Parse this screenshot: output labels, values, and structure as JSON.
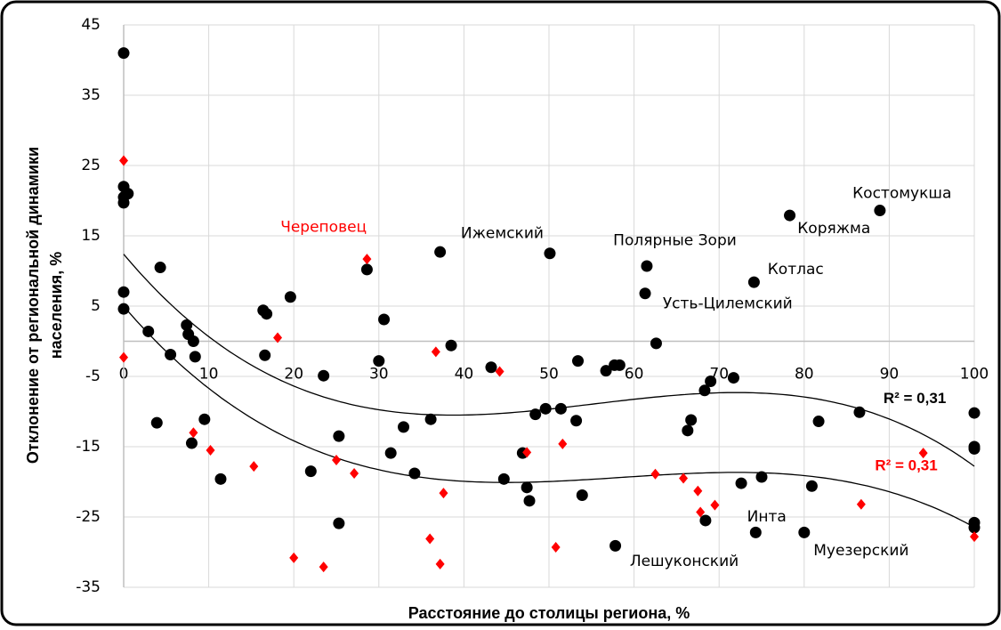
{
  "chart_data": {
    "type": "scatter",
    "xlabel": "Расстояние до столицы региона, %",
    "ylabel": [
      "Отклонение от региональной динамики",
      "населения, %"
    ],
    "xlim": [
      0,
      100
    ],
    "xticks": [
      0,
      10,
      20,
      30,
      40,
      50,
      60,
      70,
      80,
      90,
      100
    ],
    "ylim": [
      -35,
      45
    ],
    "yticks": [
      45,
      35,
      25,
      15,
      5,
      -5,
      -15,
      -25,
      -35
    ],
    "grid": true,
    "trendline_order": 3,
    "series": [
      {
        "color": "#000000",
        "marker": "circle",
        "x": [
          0,
          0,
          0.5,
          0,
          0,
          0,
          0,
          2.9,
          4.3,
          3.9,
          5.5,
          7.4,
          7.6,
          8.2,
          8.4,
          8,
          9.5,
          11.4,
          16.4,
          16.8,
          16.6,
          19.6,
          22,
          23.5,
          25.3,
          25.3,
          28.6,
          30,
          30.6,
          31.4,
          32.9,
          34.2,
          36.1,
          37.2,
          38.5,
          43.2,
          44.7,
          46.9,
          47.4,
          47.7,
          48.4,
          49.6,
          50.1,
          51.4,
          53.2,
          53.4,
          53.9,
          56.7,
          57.7,
          58.3,
          57.8,
          61.5,
          61.3,
          62.6,
          66.3,
          66.7,
          68.3,
          69,
          71.7,
          68.4,
          72.6,
          74.3,
          74.1,
          75,
          78.3,
          80.9,
          80,
          81.7,
          86.5,
          88.9,
          100,
          100,
          100,
          100,
          100
        ],
        "values": [
          41,
          22,
          21,
          20.5,
          19.7,
          7,
          4.6,
          1.4,
          10.5,
          -11.6,
          -1.9,
          2.3,
          1,
          0,
          -2.2,
          -14.5,
          -11.1,
          -19.6,
          4.4,
          3.9,
          -2,
          6.3,
          -18.5,
          -4.9,
          -13.5,
          -25.9,
          10.2,
          -2.8,
          3.1,
          -15.9,
          -12.2,
          -18.8,
          -11.1,
          12.7,
          -0.6,
          -3.7,
          -19.6,
          -15.9,
          -20.8,
          -22.7,
          -10.4,
          -9.6,
          12.5,
          -9.6,
          -11.3,
          -2.8,
          -21.9,
          -4.2,
          -3.4,
          -3.4,
          -29.1,
          10.7,
          6.8,
          -0.3,
          -12.7,
          -11.2,
          -7,
          -5.7,
          -5.2,
          -25.5,
          -20.2,
          -27.2,
          8.4,
          -19.3,
          17.9,
          -20.6,
          -27.2,
          -11.4,
          -10.1,
          18.6,
          -10.2,
          -15,
          -15.3,
          -25.8,
          -26.5
        ]
      },
      {
        "color": "#ff0000",
        "marker": "diamond",
        "x": [
          0,
          0,
          8.2,
          10.2,
          15.3,
          18.1,
          20,
          23.5,
          25,
          27.1,
          28.6,
          36,
          36.7,
          37.2,
          37.6,
          44.2,
          47.4,
          50.8,
          51.6,
          62.5,
          65.8,
          67.5,
          67.8,
          69.5,
          86.7,
          94,
          100
        ],
        "values": [
          25.7,
          -2.3,
          -13,
          -15.5,
          -17.8,
          0.5,
          -30.8,
          -32.1,
          -16.9,
          -18.8,
          11.7,
          -28.1,
          -1.5,
          -31.7,
          -21.6,
          -4.3,
          -15.8,
          -29.3,
          -14.6,
          -18.9,
          -19.5,
          -21.3,
          -24.3,
          -23.3,
          -23.2,
          -15.9,
          -27.8
        ]
      }
    ],
    "annotations": [
      {
        "text": "Череповец",
        "color": "#ff0000"
      },
      {
        "text": "Ижемский",
        "color": "#000000"
      },
      {
        "text": "Полярные Зори",
        "color": "#000000"
      },
      {
        "text": "Костомукша",
        "color": "#000000"
      },
      {
        "text": "Коряжма",
        "color": "#000000"
      },
      {
        "text": "Котлас",
        "color": "#000000"
      },
      {
        "text": "Усть-Цилемский",
        "color": "#000000"
      },
      {
        "text": "Инта",
        "color": "#000000"
      },
      {
        "text": "Муезерский",
        "color": "#000000"
      },
      {
        "text": "Лешуконский",
        "color": "#000000"
      },
      {
        "text": "R² = 0,31",
        "color": "#000000",
        "bold": true
      },
      {
        "text": "R² = 0,31",
        "color": "#ff0000",
        "bold": true
      }
    ]
  }
}
